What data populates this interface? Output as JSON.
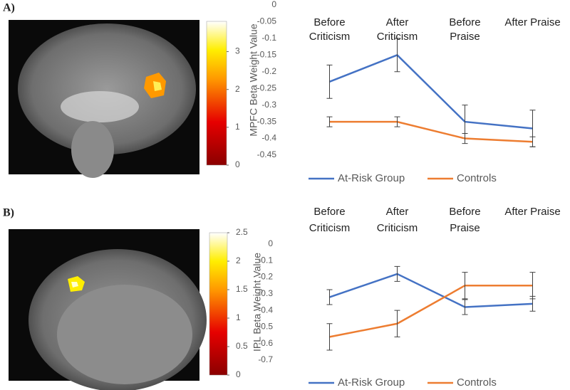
{
  "panel_labels": [
    "A)",
    "B)"
  ],
  "colorbars": [
    {
      "clim": [
        0,
        3.8
      ],
      "ticks": [
        0,
        1,
        2,
        3
      ]
    },
    {
      "clim": [
        0,
        2.5
      ],
      "ticks": [
        0,
        0.5,
        1,
        1.5,
        2,
        2.5
      ]
    }
  ],
  "chart_data": [
    {
      "type": "line",
      "y_label": "MPFC Beta Weight Value",
      "categories": [
        "Before Criticism",
        "After Criticism",
        "Before Praise",
        "After Praise"
      ],
      "ylim": [
        -0.45,
        0
      ],
      "yticks": [
        0,
        -0.05,
        -0.1,
        -0.15,
        -0.2,
        -0.25,
        -0.3,
        -0.35,
        -0.4,
        -0.45
      ],
      "series": [
        {
          "name": "At-Risk Group",
          "color": "#4472c4",
          "values": [
            -0.23,
            -0.15,
            -0.35,
            -0.37
          ],
          "errors": [
            0.05,
            0.05,
            0.05,
            0.055
          ]
        },
        {
          "name": "Controls",
          "color": "#ed7d31",
          "values": [
            -0.35,
            -0.35,
            -0.4,
            -0.41
          ],
          "errors": [
            0.015,
            0.015,
            0.015,
            0.015
          ]
        }
      ]
    },
    {
      "type": "line",
      "y_label": "IPL Beta Weight Value",
      "categories": [
        "Before Criticism",
        "After Criticism",
        "Before Praise",
        "After Praise"
      ],
      "ylim": [
        -0.7,
        0
      ],
      "yticks": [
        0,
        -0.1,
        -0.2,
        -0.3,
        -0.4,
        -0.5,
        -0.6,
        -0.7
      ],
      "series": [
        {
          "name": "At-Risk Group",
          "color": "#4472c4",
          "values": [
            -0.32,
            -0.18,
            -0.38,
            -0.36
          ],
          "errors": [
            0.045,
            0.045,
            0.045,
            0.045
          ]
        },
        {
          "name": "Controls",
          "color": "#ed7d31",
          "values": [
            -0.56,
            -0.48,
            -0.25,
            -0.25
          ],
          "errors": [
            0.08,
            0.08,
            0.08,
            0.08
          ]
        }
      ]
    }
  ]
}
